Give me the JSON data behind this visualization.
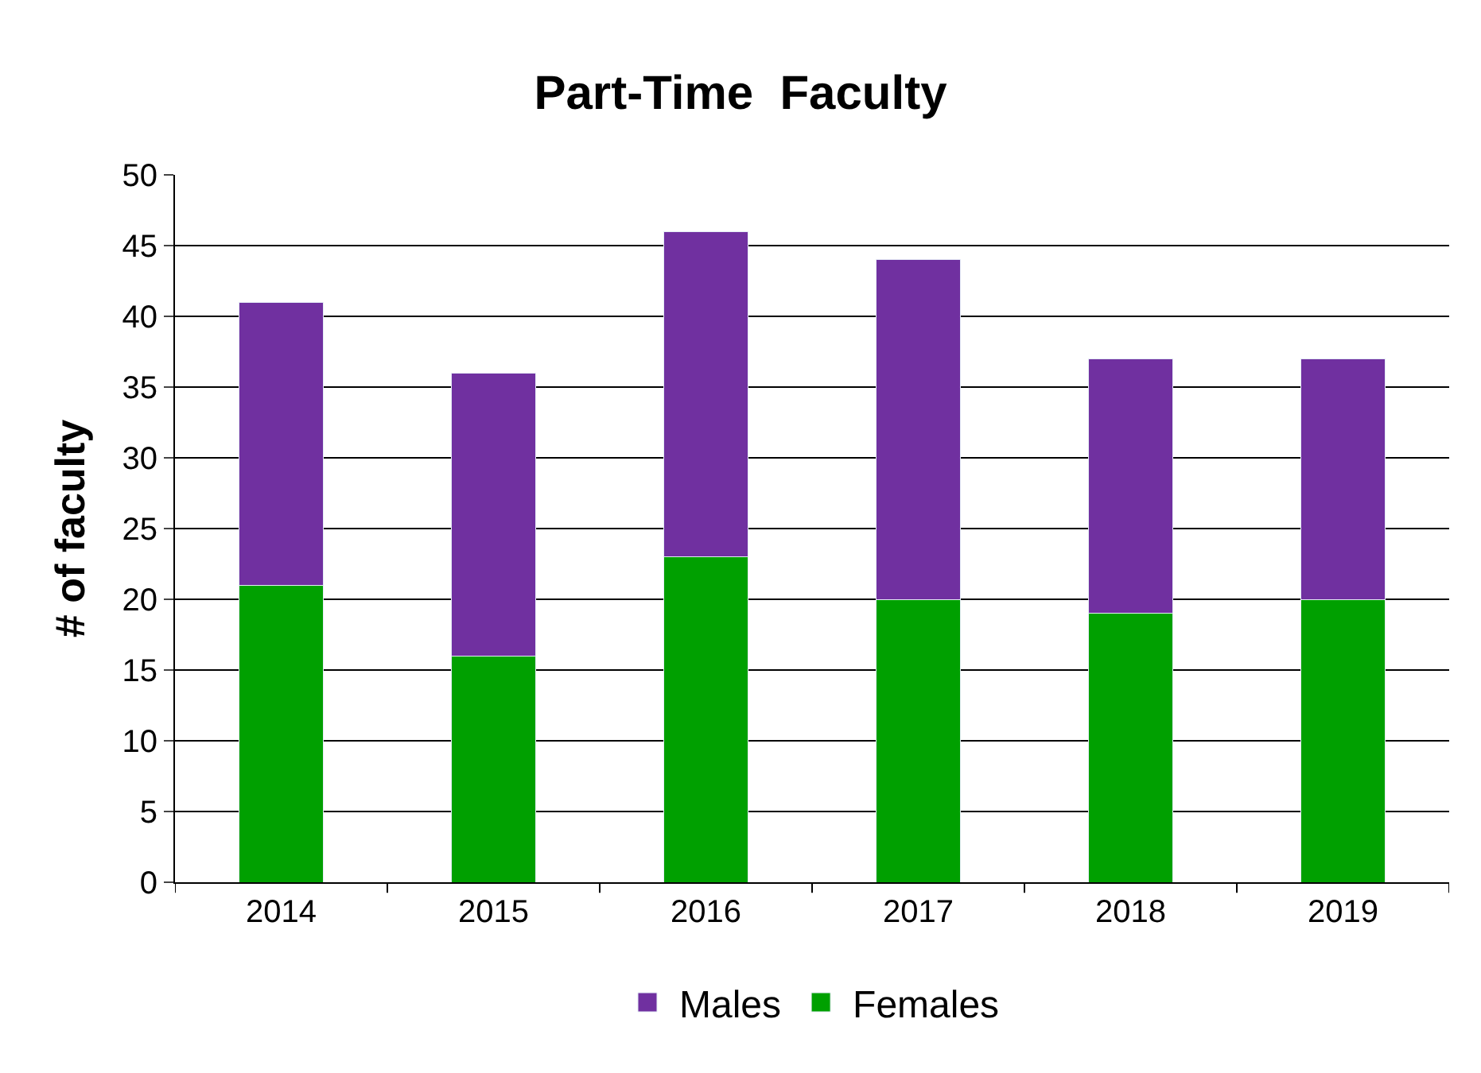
{
  "chart_data": {
    "type": "bar",
    "title": "Part-Time  Faculty",
    "ylabel": "# of faculty",
    "categories": [
      "2014",
      "2015",
      "2016",
      "2017",
      "2018",
      "2019"
    ],
    "stacked": true,
    "series": [
      {
        "name": "Females",
        "color": "#00a000",
        "values": [
          21,
          16,
          23,
          20,
          19,
          20
        ]
      },
      {
        "name": "Males",
        "color": "#7030a0",
        "values": [
          20,
          20,
          23,
          24,
          18,
          17
        ]
      }
    ],
    "ylim": [
      0,
      50
    ],
    "yticks": [
      0,
      5,
      10,
      15,
      20,
      25,
      30,
      35,
      40,
      45,
      50
    ],
    "grid": "y",
    "legend": "bottom"
  }
}
